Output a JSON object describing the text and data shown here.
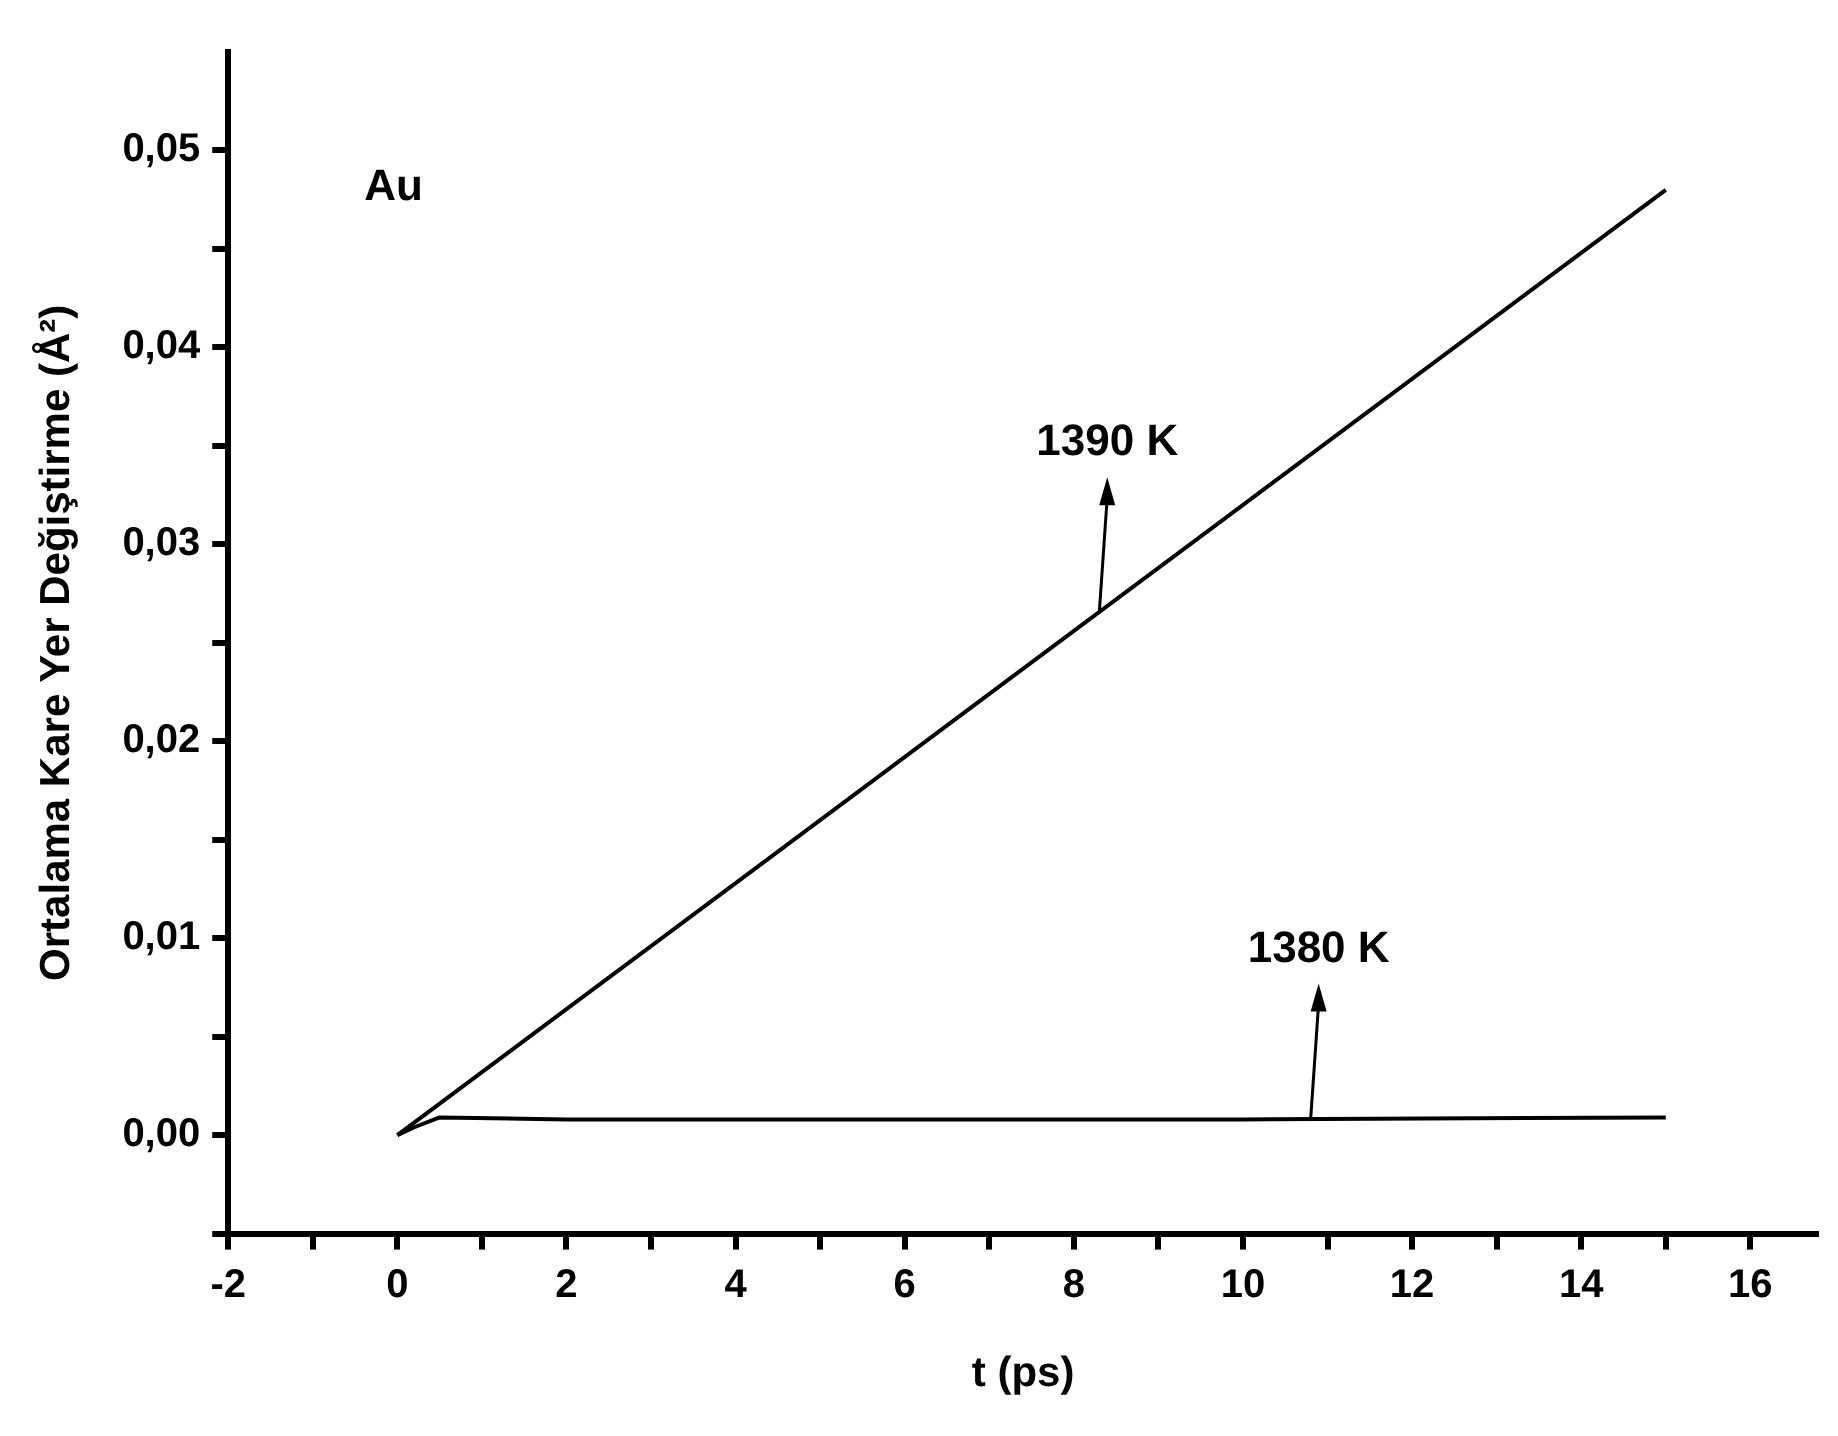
{
  "chart_data": {
    "type": "line",
    "xlabel": "t (ps)",
    "ylabel": "Ortalama Kare Yer Değiştirme (Å²)",
    "xlim": [
      -2,
      16.8
    ],
    "ylim": [
      -0.005,
      0.055
    ],
    "xticks": [
      -2,
      {
        "value": -1,
        "label": null
      },
      0,
      {
        "value": 1,
        "label": null
      },
      2,
      {
        "value": 3,
        "label": null
      },
      4,
      {
        "value": 5,
        "label": null
      },
      6,
      {
        "value": 7,
        "label": null
      },
      8,
      {
        "value": 9,
        "label": null
      },
      10,
      {
        "value": 11,
        "label": null
      },
      12,
      {
        "value": 13,
        "label": null
      },
      14,
      {
        "value": 15,
        "label": null
      },
      16
    ],
    "yticks": [
      {
        "value": -0.005,
        "label": null
      },
      {
        "value": 0,
        "label": "0,00"
      },
      {
        "value": 0.005,
        "label": null
      },
      {
        "value": 0.01,
        "label": "0,01"
      },
      {
        "value": 0.015,
        "label": null
      },
      {
        "value": 0.02,
        "label": "0,02"
      },
      {
        "value": 0.025,
        "label": null
      },
      {
        "value": 0.03,
        "label": "0,03"
      },
      {
        "value": 0.035,
        "label": null
      },
      {
        "value": 0.04,
        "label": "0,04"
      },
      {
        "value": 0.045,
        "label": null
      },
      {
        "value": 0.05,
        "label": "0,05"
      }
    ],
    "marker": "none",
    "line_style": "solid",
    "series": [
      {
        "color": "#000000",
        "x": [
          0,
          15
        ],
        "values": [
          0,
          0.048
        ]
      },
      {
        "color": "#000000",
        "x": [
          0,
          0.2,
          0.5,
          2,
          6,
          10,
          15
        ],
        "values": [
          0,
          0.0004,
          0.0009,
          0.0008,
          0.0008,
          0.0008,
          0.0009
        ]
      }
    ],
    "annotations": [
      "Au",
      {
        "text": "1390 K",
        "x": 8.3,
        "y": 0.0265
      },
      {
        "text": "1380 K",
        "x": 10.8,
        "y": 0.0008
      }
    ]
  }
}
